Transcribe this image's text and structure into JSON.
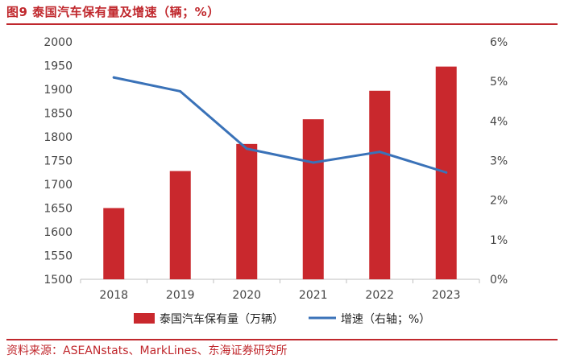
{
  "figure": {
    "title": "图9  泰国汽车保有量及增速（辆；%）",
    "source": "资料来源：ASEANstats、MarkLines、东海证券研究所"
  },
  "colors": {
    "accent": "#c0282d",
    "bar": "#c9282d",
    "line": "#3a72b8",
    "axis": "#bfbfbf"
  },
  "chart_data": {
    "type": "bar",
    "title": "泰国汽车保有量及增速（辆；%）",
    "categories": [
      "2018",
      "2019",
      "2020",
      "2021",
      "2022",
      "2023"
    ],
    "series": [
      {
        "name": "泰国汽车保有量（万辆）",
        "type": "bar",
        "axis": "left",
        "values": [
          1650,
          1728,
          1785,
          1837,
          1897,
          1948
        ]
      },
      {
        "name": "增速（右轴；%）",
        "type": "line",
        "axis": "right",
        "values": [
          5.1,
          4.75,
          3.3,
          2.95,
          3.22,
          2.7
        ]
      }
    ],
    "ylim_left": [
      1500,
      2000
    ],
    "yticks_left": [
      "1500",
      "1550",
      "1600",
      "1650",
      "1700",
      "1750",
      "1800",
      "1850",
      "1900",
      "1950",
      "2000"
    ],
    "ylim_right": [
      0,
      6
    ],
    "yticks_right": [
      "0%",
      "1%",
      "2%",
      "3%",
      "4%",
      "5%",
      "6%"
    ],
    "legend_position": "bottom",
    "grid": false
  }
}
